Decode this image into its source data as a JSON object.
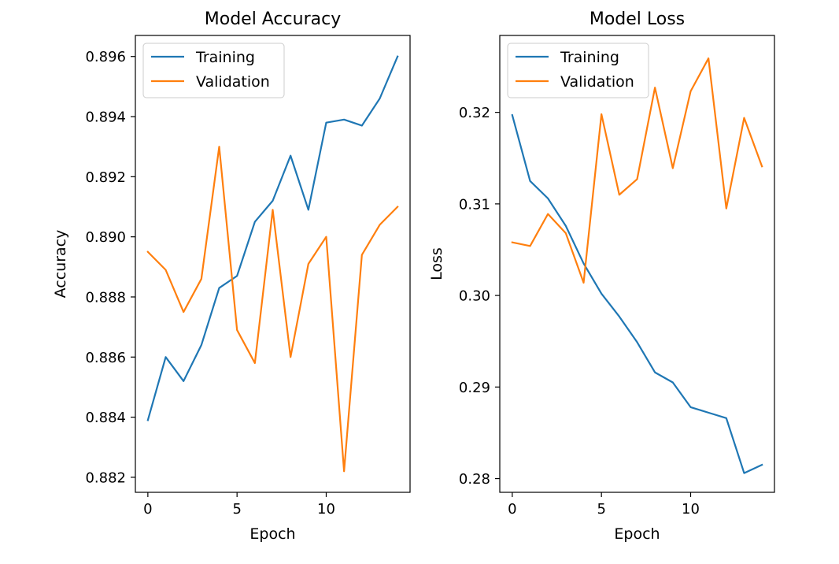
{
  "figure": {
    "background": "#ffffff",
    "colors": {
      "training": "#1f77b4",
      "validation": "#ff7f0e"
    }
  },
  "chart_data": [
    {
      "type": "line",
      "title": "Model Accuracy",
      "xlabel": "Epoch",
      "ylabel": "Accuracy",
      "xlim": [
        -0.7,
        14.7
      ],
      "ylim": [
        0.8815,
        0.8967
      ],
      "xticks": [
        0,
        5,
        10
      ],
      "yticks": [
        0.882,
        0.884,
        0.886,
        0.888,
        0.89,
        0.892,
        0.894,
        0.896
      ],
      "ytick_decimals": 3,
      "grid": false,
      "legend": "top-left",
      "x": [
        0,
        1,
        2,
        3,
        4,
        5,
        6,
        7,
        8,
        9,
        10,
        11,
        12,
        13,
        14
      ],
      "series": [
        {
          "name": "Training",
          "color": "#1f77b4",
          "values": [
            0.8839,
            0.886,
            0.8852,
            0.8864,
            0.8883,
            0.8887,
            0.8905,
            0.8912,
            0.8927,
            0.8909,
            0.8938,
            0.8939,
            0.8937,
            0.8946,
            0.896
          ]
        },
        {
          "name": "Validation",
          "color": "#ff7f0e",
          "values": [
            0.8895,
            0.8889,
            0.8875,
            0.8886,
            0.893,
            0.8869,
            0.8858,
            0.8909,
            0.886,
            0.8891,
            0.89,
            0.8822,
            0.8894,
            0.8904,
            0.891
          ]
        }
      ]
    },
    {
      "type": "line",
      "title": "Model Loss",
      "xlabel": "Epoch",
      "ylabel": "Loss",
      "xlim": [
        -0.7,
        14.7
      ],
      "ylim": [
        0.2785,
        0.3284
      ],
      "xticks": [
        0,
        5,
        10
      ],
      "yticks": [
        0.28,
        0.29,
        0.3,
        0.31,
        0.32
      ],
      "ytick_decimals": 2,
      "grid": false,
      "legend": "top-left",
      "x": [
        0,
        1,
        2,
        3,
        4,
        5,
        6,
        7,
        8,
        9,
        10,
        11,
        12,
        13,
        14
      ],
      "series": [
        {
          "name": "Training",
          "color": "#1f77b4",
          "values": [
            0.3197,
            0.3125,
            0.3106,
            0.3076,
            0.3035,
            0.3002,
            0.2977,
            0.2949,
            0.2916,
            0.2905,
            0.2878,
            0.2872,
            0.2866,
            0.2806,
            0.2815
          ]
        },
        {
          "name": "Validation",
          "color": "#ff7f0e",
          "values": [
            0.3058,
            0.3054,
            0.3089,
            0.3068,
            0.3014,
            0.3198,
            0.311,
            0.3127,
            0.3227,
            0.3139,
            0.3223,
            0.3259,
            0.3095,
            0.3194,
            0.3141
          ]
        }
      ]
    }
  ]
}
